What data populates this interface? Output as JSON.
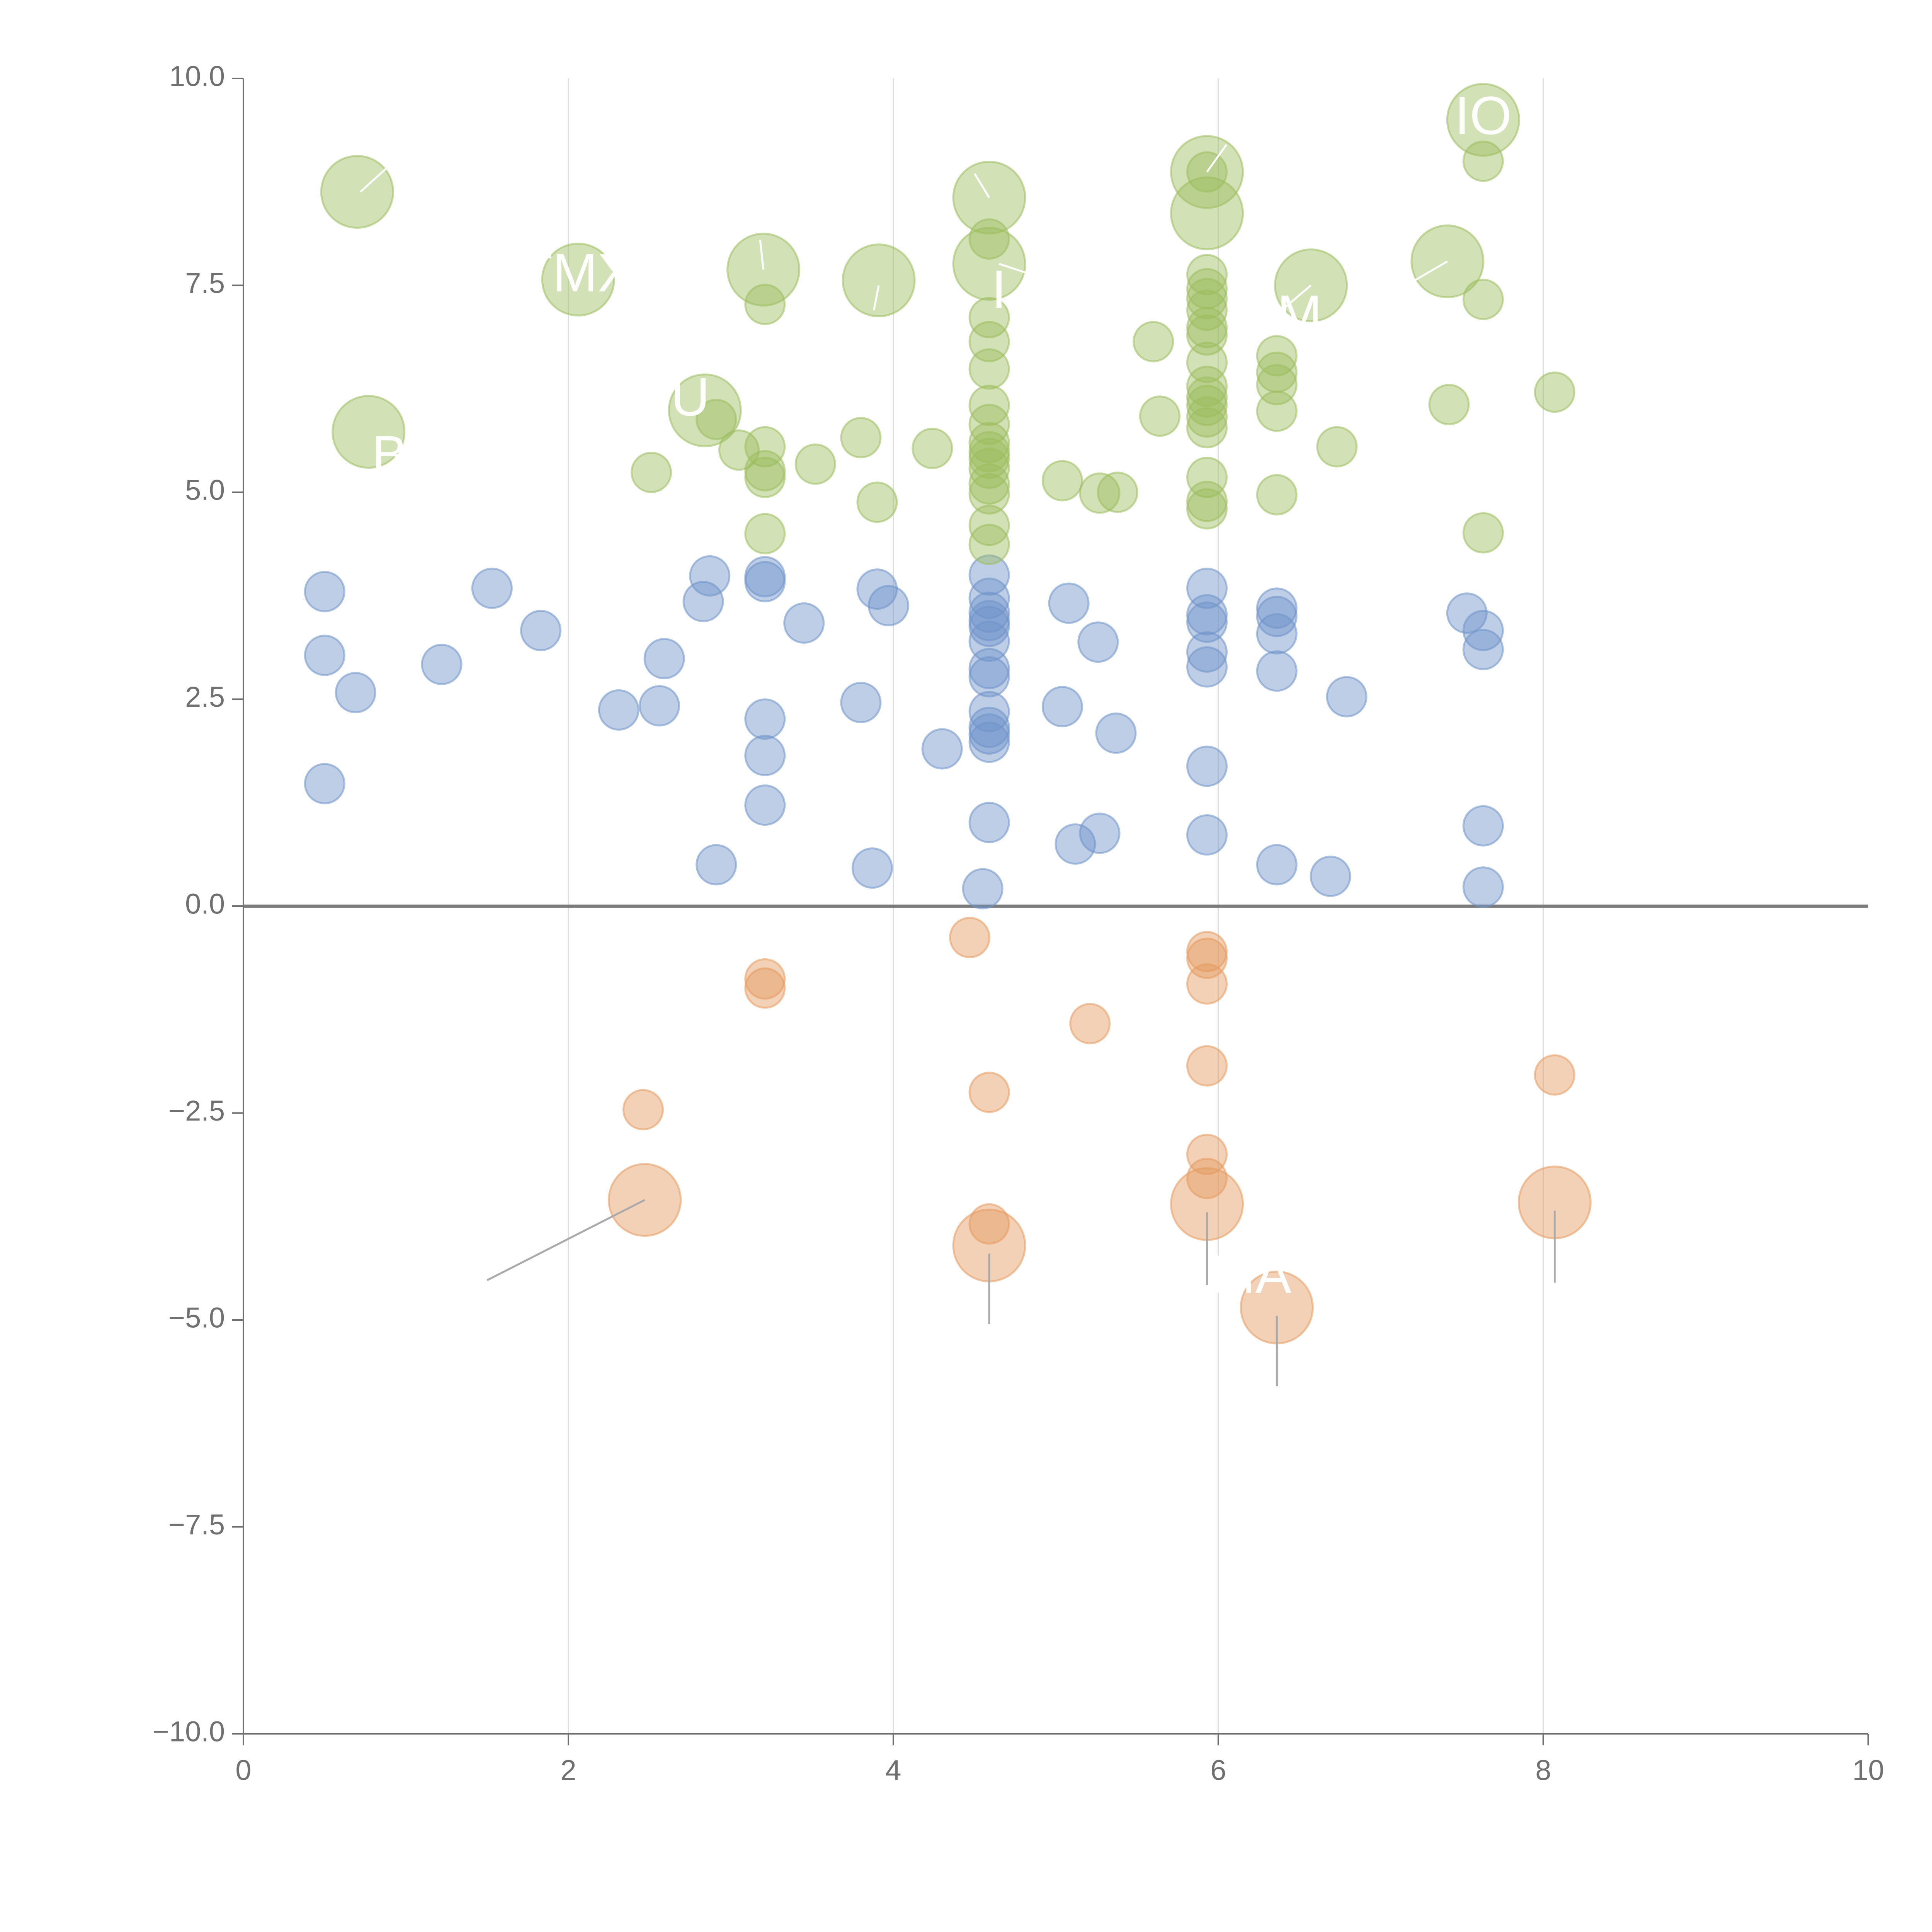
{
  "colors": {
    "blue": "#6f93c9",
    "green": "#9cbd5e",
    "orange": "#e59a5f",
    "axis": "#6f6f6f",
    "grid": "#dddddd",
    "label": "#ffffff"
  },
  "chart_data": {
    "type": "scatter",
    "title": "",
    "xlabel": "",
    "ylabel": "",
    "xlim": [
      0,
      10
    ],
    "ylim": [
      -10,
      10
    ],
    "x_ticks": [
      0,
      2,
      4,
      6,
      8,
      10
    ],
    "y_ticks": [
      10.0,
      7.5,
      5.0,
      2.5,
      0.0,
      -2.5,
      -5.0,
      -7.5,
      -10.0
    ],
    "x_tick_labels": [
      "0",
      "2",
      "4",
      "6",
      "8",
      "10"
    ],
    "y_tick_labels": [
      "10.0",
      "7.5",
      "5.0",
      "2.5",
      "0.0",
      "−2.5",
      "−5.0",
      "−7.5",
      "−10.0"
    ],
    "vertical_grid": [
      2,
      4,
      6,
      8
    ],
    "zero_line": 0,
    "labels": [
      {
        "text": "IO",
        "x": 7.63,
        "y": 9.5,
        "color": "green"
      },
      {
        "text": "TMX",
        "x": 2.05,
        "y": 7.6,
        "color": "green"
      },
      {
        "text": "U",
        "x": 2.75,
        "y": 6.1,
        "color": "green"
      },
      {
        "text": "B",
        "x": 0.9,
        "y": 5.4,
        "color": "green"
      },
      {
        "text": "M",
        "x": 6.5,
        "y": 7.1,
        "color": "green"
      },
      {
        "text": "I",
        "x": 4.65,
        "y": 7.4,
        "color": "green"
      },
      {
        "text": "MA",
        "x": 6.2,
        "y": -4.5,
        "color": "orange"
      }
    ],
    "series": [
      {
        "name": "positive-low",
        "color": "blue",
        "points": [
          {
            "x": 0.5,
            "y": 3.8,
            "size": 1
          },
          {
            "x": 0.5,
            "y": 3.03,
            "size": 1
          },
          {
            "x": 0.69,
            "y": 2.58,
            "size": 1
          },
          {
            "x": 0.5,
            "y": 1.48,
            "size": 1
          },
          {
            "x": 1.22,
            "y": 2.92,
            "size": 1
          },
          {
            "x": 1.53,
            "y": 3.84,
            "size": 1
          },
          {
            "x": 1.83,
            "y": 3.33,
            "size": 1
          },
          {
            "x": 2.31,
            "y": 2.37,
            "size": 1
          },
          {
            "x": 2.56,
            "y": 2.42,
            "size": 1
          },
          {
            "x": 2.59,
            "y": 2.99,
            "size": 1
          },
          {
            "x": 2.83,
            "y": 3.68,
            "size": 1
          },
          {
            "x": 2.87,
            "y": 3.99,
            "size": 1
          },
          {
            "x": 2.91,
            "y": 0.5,
            "size": 1
          },
          {
            "x": 3.21,
            "y": 3.98,
            "size": 1
          },
          {
            "x": 3.21,
            "y": 3.92,
            "size": 1
          },
          {
            "x": 3.21,
            "y": 2.26,
            "size": 1
          },
          {
            "x": 3.21,
            "y": 1.82,
            "size": 1
          },
          {
            "x": 3.21,
            "y": 1.22,
            "size": 1
          },
          {
            "x": 3.45,
            "y": 3.42,
            "size": 1
          },
          {
            "x": 3.8,
            "y": 2.46,
            "size": 1
          },
          {
            "x": 3.87,
            "y": 0.46,
            "size": 1
          },
          {
            "x": 3.9,
            "y": 3.83,
            "size": 1
          },
          {
            "x": 3.97,
            "y": 3.63,
            "size": 1
          },
          {
            "x": 4.3,
            "y": 1.9,
            "size": 1
          },
          {
            "x": 4.55,
            "y": 0.21,
            "size": 1
          },
          {
            "x": 4.59,
            "y": 4.0,
            "size": 1
          },
          {
            "x": 4.59,
            "y": 3.72,
            "size": 1
          },
          {
            "x": 4.59,
            "y": 3.55,
            "size": 1
          },
          {
            "x": 4.59,
            "y": 3.45,
            "size": 1
          },
          {
            "x": 4.59,
            "y": 3.38,
            "size": 1
          },
          {
            "x": 4.59,
            "y": 3.2,
            "size": 1
          },
          {
            "x": 4.59,
            "y": 2.87,
            "size": 1
          },
          {
            "x": 4.59,
            "y": 2.77,
            "size": 1
          },
          {
            "x": 4.59,
            "y": 2.35,
            "size": 1
          },
          {
            "x": 4.59,
            "y": 2.16,
            "size": 1
          },
          {
            "x": 4.59,
            "y": 2.08,
            "size": 1
          },
          {
            "x": 4.59,
            "y": 1.98,
            "size": 1
          },
          {
            "x": 4.59,
            "y": 1.01,
            "size": 1
          },
          {
            "x": 5.04,
            "y": 2.41,
            "size": 1
          },
          {
            "x": 5.08,
            "y": 3.66,
            "size": 1
          },
          {
            "x": 5.12,
            "y": 0.75,
            "size": 1
          },
          {
            "x": 5.26,
            "y": 3.19,
            "size": 1
          },
          {
            "x": 5.27,
            "y": 0.88,
            "size": 1
          },
          {
            "x": 5.37,
            "y": 2.09,
            "size": 1
          },
          {
            "x": 5.93,
            "y": 3.84,
            "size": 1
          },
          {
            "x": 5.93,
            "y": 3.52,
            "size": 1
          },
          {
            "x": 5.93,
            "y": 3.43,
            "size": 1
          },
          {
            "x": 5.93,
            "y": 3.07,
            "size": 1
          },
          {
            "x": 5.93,
            "y": 2.89,
            "size": 1
          },
          {
            "x": 5.93,
            "y": 1.69,
            "size": 1
          },
          {
            "x": 5.93,
            "y": 0.86,
            "size": 1
          },
          {
            "x": 6.36,
            "y": 3.6,
            "size": 1
          },
          {
            "x": 6.36,
            "y": 3.5,
            "size": 1
          },
          {
            "x": 6.36,
            "y": 3.29,
            "size": 1
          },
          {
            "x": 6.36,
            "y": 2.84,
            "size": 1
          },
          {
            "x": 6.36,
            "y": 0.5,
            "size": 1
          },
          {
            "x": 6.69,
            "y": 0.36,
            "size": 1
          },
          {
            "x": 6.79,
            "y": 2.53,
            "size": 1
          },
          {
            "x": 7.53,
            "y": 3.54,
            "size": 1
          },
          {
            "x": 7.63,
            "y": 3.33,
            "size": 1
          },
          {
            "x": 7.63,
            "y": 3.1,
            "size": 1
          },
          {
            "x": 7.63,
            "y": 0.97,
            "size": 1
          },
          {
            "x": 7.63,
            "y": 0.23,
            "size": 1
          }
        ]
      },
      {
        "name": "positive-high",
        "color": "green",
        "points": [
          {
            "x": 0.7,
            "y": 8.63,
            "size": 2
          },
          {
            "x": 0.77,
            "y": 5.73,
            "size": 2
          },
          {
            "x": 2.06,
            "y": 7.57,
            "size": 2
          },
          {
            "x": 2.84,
            "y": 5.99,
            "size": 2
          },
          {
            "x": 3.2,
            "y": 7.69,
            "size": 2
          },
          {
            "x": 3.91,
            "y": 7.56,
            "size": 2
          },
          {
            "x": 4.59,
            "y": 8.56,
            "size": 2
          },
          {
            "x": 4.59,
            "y": 7.76,
            "size": 2
          },
          {
            "x": 5.93,
            "y": 8.87,
            "size": 2
          },
          {
            "x": 5.93,
            "y": 8.37,
            "size": 2
          },
          {
            "x": 6.57,
            "y": 7.5,
            "size": 2
          },
          {
            "x": 7.41,
            "y": 7.79,
            "size": 2
          },
          {
            "x": 7.63,
            "y": 9.5,
            "size": 2
          },
          {
            "x": 2.51,
            "y": 5.24,
            "size": 1
          },
          {
            "x": 2.91,
            "y": 5.88,
            "size": 1
          },
          {
            "x": 3.05,
            "y": 5.51,
            "size": 1
          },
          {
            "x": 3.21,
            "y": 7.27,
            "size": 1
          },
          {
            "x": 3.21,
            "y": 5.55,
            "size": 1
          },
          {
            "x": 3.21,
            "y": 5.26,
            "size": 1
          },
          {
            "x": 3.21,
            "y": 5.18,
            "size": 1
          },
          {
            "x": 3.21,
            "y": 4.5,
            "size": 1
          },
          {
            "x": 3.52,
            "y": 5.34,
            "size": 1
          },
          {
            "x": 3.8,
            "y": 5.66,
            "size": 1
          },
          {
            "x": 3.9,
            "y": 4.88,
            "size": 1
          },
          {
            "x": 4.24,
            "y": 5.53,
            "size": 1
          },
          {
            "x": 4.59,
            "y": 8.06,
            "size": 1
          },
          {
            "x": 4.59,
            "y": 7.11,
            "size": 1
          },
          {
            "x": 4.59,
            "y": 6.82,
            "size": 1
          },
          {
            "x": 4.59,
            "y": 6.49,
            "size": 1
          },
          {
            "x": 4.59,
            "y": 6.05,
            "size": 1
          },
          {
            "x": 4.59,
            "y": 5.82,
            "size": 1
          },
          {
            "x": 4.59,
            "y": 5.6,
            "size": 1
          },
          {
            "x": 4.59,
            "y": 5.49,
            "size": 1
          },
          {
            "x": 4.59,
            "y": 5.41,
            "size": 1
          },
          {
            "x": 4.59,
            "y": 5.29,
            "size": 1
          },
          {
            "x": 4.59,
            "y": 5.1,
            "size": 1
          },
          {
            "x": 4.59,
            "y": 4.98,
            "size": 1
          },
          {
            "x": 4.59,
            "y": 4.6,
            "size": 1
          },
          {
            "x": 4.59,
            "y": 4.37,
            "size": 1
          },
          {
            "x": 5.04,
            "y": 5.14,
            "size": 1
          },
          {
            "x": 5.27,
            "y": 4.99,
            "size": 1
          },
          {
            "x": 5.38,
            "y": 5.0,
            "size": 1
          },
          {
            "x": 5.6,
            "y": 6.82,
            "size": 1
          },
          {
            "x": 5.64,
            "y": 5.92,
            "size": 1
          },
          {
            "x": 5.93,
            "y": 8.87,
            "size": 1
          },
          {
            "x": 5.93,
            "y": 7.63,
            "size": 1
          },
          {
            "x": 5.93,
            "y": 7.46,
            "size": 1
          },
          {
            "x": 5.93,
            "y": 7.34,
            "size": 1
          },
          {
            "x": 5.93,
            "y": 7.2,
            "size": 1
          },
          {
            "x": 5.93,
            "y": 6.99,
            "size": 1
          },
          {
            "x": 5.93,
            "y": 6.9,
            "size": 1
          },
          {
            "x": 5.93,
            "y": 6.57,
            "size": 1
          },
          {
            "x": 5.93,
            "y": 6.28,
            "size": 1
          },
          {
            "x": 5.93,
            "y": 6.15,
            "size": 1
          },
          {
            "x": 5.93,
            "y": 6.05,
            "size": 1
          },
          {
            "x": 5.93,
            "y": 5.91,
            "size": 1
          },
          {
            "x": 5.93,
            "y": 5.78,
            "size": 1
          },
          {
            "x": 5.93,
            "y": 5.18,
            "size": 1
          },
          {
            "x": 5.93,
            "y": 4.89,
            "size": 1
          },
          {
            "x": 5.93,
            "y": 4.8,
            "size": 1
          },
          {
            "x": 6.36,
            "y": 6.65,
            "size": 1
          },
          {
            "x": 6.36,
            "y": 6.45,
            "size": 1
          },
          {
            "x": 6.36,
            "y": 6.3,
            "size": 1
          },
          {
            "x": 6.36,
            "y": 5.98,
            "size": 1
          },
          {
            "x": 6.36,
            "y": 4.97,
            "size": 1
          },
          {
            "x": 6.73,
            "y": 5.55,
            "size": 1
          },
          {
            "x": 7.42,
            "y": 6.06,
            "size": 1
          },
          {
            "x": 7.63,
            "y": 9.0,
            "size": 1
          },
          {
            "x": 7.63,
            "y": 7.33,
            "size": 1
          },
          {
            "x": 7.63,
            "y": 4.51,
            "size": 1
          },
          {
            "x": 8.07,
            "y": 6.21,
            "size": 1
          }
        ]
      },
      {
        "name": "negative",
        "color": "orange",
        "points": [
          {
            "x": 2.47,
            "y": -3.55,
            "size": 2
          },
          {
            "x": 4.59,
            "y": -4.1,
            "size": 2
          },
          {
            "x": 5.93,
            "y": -3.6,
            "size": 2
          },
          {
            "x": 6.36,
            "y": -4.85,
            "size": 2
          },
          {
            "x": 8.07,
            "y": -3.58,
            "size": 2
          },
          {
            "x": 2.46,
            "y": -2.46,
            "size": 1
          },
          {
            "x": 3.21,
            "y": -0.88,
            "size": 1
          },
          {
            "x": 3.21,
            "y": -0.99,
            "size": 1
          },
          {
            "x": 4.47,
            "y": -0.38,
            "size": 1
          },
          {
            "x": 4.59,
            "y": -2.25,
            "size": 1
          },
          {
            "x": 4.59,
            "y": -3.84,
            "size": 1
          },
          {
            "x": 5.21,
            "y": -1.42,
            "size": 1
          },
          {
            "x": 5.93,
            "y": -0.55,
            "size": 1
          },
          {
            "x": 5.93,
            "y": -0.63,
            "size": 1
          },
          {
            "x": 5.93,
            "y": -0.94,
            "size": 1
          },
          {
            "x": 5.93,
            "y": -1.93,
            "size": 1
          },
          {
            "x": 5.93,
            "y": -3.0,
            "size": 1
          },
          {
            "x": 5.93,
            "y": -3.29,
            "size": 1
          },
          {
            "x": 8.07,
            "y": -2.04,
            "size": 1
          }
        ]
      }
    ]
  }
}
